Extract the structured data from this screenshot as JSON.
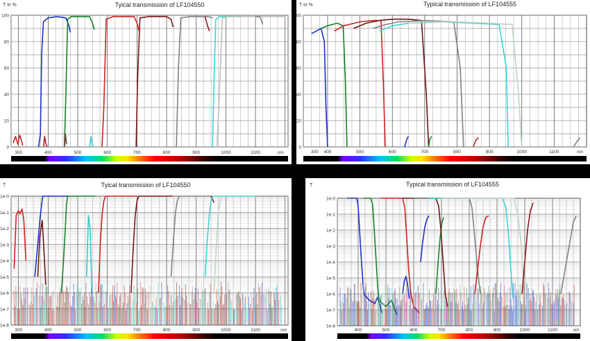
{
  "chart_data": [
    {
      "type": "line",
      "title": "Tyical transmission  of LF104550",
      "ylabel": "T in %",
      "xlabel": "nm",
      "y_scale": "linear",
      "xlim": [
        275,
        1210
      ],
      "ylim": [
        0,
        100
      ],
      "x_ticks": [
        "300",
        "400",
        "500",
        "600",
        "700",
        "800",
        "900",
        "1000",
        "1100",
        "nm"
      ],
      "y_ticks": [
        "0",
        "20",
        "40",
        "60",
        "80",
        "100"
      ],
      "grid": true,
      "spectrum_bar": true,
      "series": [
        {
          "color": "#d42020",
          "x": [
            282,
            290,
            298,
            304,
            310,
            314
          ],
          "y": [
            3,
            8,
            2,
            9,
            5,
            1
          ]
        },
        {
          "color": "#1a2fc8",
          "x": [
            368,
            374,
            378,
            384,
            400,
            430,
            460,
            470,
            475
          ],
          "y": [
            0,
            10,
            70,
            95,
            98,
            99,
            98,
            92,
            87
          ]
        },
        {
          "color": "#b02020",
          "x": [
            385,
            388,
            392,
            396
          ],
          "y": [
            0,
            8,
            3,
            0
          ]
        },
        {
          "color": "#17802a",
          "x": [
            455,
            460,
            466,
            478,
            540,
            548,
            556
          ],
          "y": [
            0,
            40,
            97,
            99,
            99,
            95,
            89
          ]
        },
        {
          "color": "#6b3c2c",
          "x": [
            455,
            458,
            462
          ],
          "y": [
            0,
            10,
            2
          ]
        },
        {
          "color": "#35c7c7",
          "x": [
            540,
            545,
            550
          ],
          "y": [
            0,
            8,
            0
          ]
        },
        {
          "color": "#cc2020",
          "x": [
            582,
            588,
            596,
            620,
            690,
            700,
            707
          ],
          "y": [
            0,
            30,
            97,
            99,
            99,
            94,
            88
          ]
        },
        {
          "color": "#7a1515",
          "x": [
            697,
            702,
            710,
            740,
            800,
            815,
            822
          ],
          "y": [
            0,
            50,
            98,
            99,
            99,
            97,
            91
          ]
        },
        {
          "color": "#808080",
          "x": [
            833,
            840,
            848,
            880,
            940,
            955
          ],
          "y": [
            0,
            60,
            98,
            99,
            99,
            98
          ]
        },
        {
          "color": "#8a1a1a",
          "x": [
            930,
            938,
            945
          ],
          "y": [
            99,
            92,
            88
          ]
        },
        {
          "color": "#3fd2d2",
          "x": [
            955,
            960,
            966,
            980,
            1000,
            1050
          ],
          "y": [
            0,
            50,
            97,
            99,
            99,
            99
          ]
        },
        {
          "color": "#b4c4b4",
          "x": [
            970,
            978,
            988,
            1010,
            1100,
            1135,
            1200
          ],
          "y": [
            0,
            40,
            98,
            99,
            99,
            99,
            99
          ]
        },
        {
          "color": "#808080",
          "x": [
            1100,
            1115,
            1125
          ],
          "y": [
            99,
            99,
            93
          ]
        }
      ]
    },
    {
      "type": "line",
      "title": "Typical transmission of LF104555",
      "ylabel": "T in %",
      "xlabel": "nm",
      "y_scale": "linear",
      "xlim": [
        325,
        1200
      ],
      "ylim": [
        0,
        100
      ],
      "x_ticks": [
        "300",
        "400",
        "500",
        "600",
        "700",
        "800",
        "900",
        "1000",
        "1100",
        "nm"
      ],
      "y_ticks": [
        "0",
        "20",
        "40",
        "60",
        "80",
        "100"
      ],
      "grid": true,
      "spectrum_bar": true,
      "series": [
        {
          "color": "#1a2fc8",
          "x": [
            350,
            365,
            380,
            390,
            395,
            400
          ],
          "y": [
            86,
            88,
            90,
            80,
            30,
            0
          ]
        },
        {
          "color": "#17802a",
          "x": [
            380,
            400,
            430,
            448,
            455,
            460
          ],
          "y": [
            90,
            92,
            94,
            92,
            50,
            0
          ]
        },
        {
          "color": "#cc2020",
          "x": [
            420,
            450,
            500,
            540,
            565,
            572,
            578
          ],
          "y": [
            88,
            92,
            95,
            96,
            96,
            50,
            0
          ]
        },
        {
          "color": "#6b1515",
          "x": [
            480,
            520,
            560,
            600,
            650,
            690,
            705,
            712
          ],
          "y": [
            90,
            94,
            96,
            97,
            97,
            96,
            40,
            0
          ]
        },
        {
          "color": "#808080",
          "x": [
            540,
            580,
            620,
            700,
            790,
            810,
            820
          ],
          "y": [
            90,
            93,
            95,
            96,
            95,
            60,
            0
          ]
        },
        {
          "color": "#3fd2d2",
          "x": [
            560,
            600,
            650,
            750,
            850,
            930,
            952,
            958
          ],
          "y": [
            88,
            92,
            94,
            95,
            94,
            93,
            60,
            0
          ]
        },
        {
          "color": "#c0d4c0",
          "x": [
            650,
            700,
            800,
            900,
            970,
            990,
            1000
          ],
          "y": [
            94,
            95,
            95,
            94,
            93,
            40,
            0
          ]
        },
        {
          "color": "#1a2fc8",
          "x": [
            638,
            645,
            650
          ],
          "y": [
            0,
            6,
            8
          ]
        },
        {
          "color": "#17802a",
          "x": [
            712,
            716,
            722
          ],
          "y": [
            0,
            6,
            8
          ]
        },
        {
          "color": "#cc2020",
          "x": [
            850,
            858,
            866
          ],
          "y": [
            0,
            5,
            7
          ]
        },
        {
          "color": "#808080",
          "x": [
            1160,
            1170,
            1180
          ],
          "y": [
            0,
            4,
            7
          ]
        }
      ]
    },
    {
      "type": "line",
      "title": "Tyical transmission  of LF104550",
      "ylabel": "T",
      "xlabel": "nm",
      "y_scale": "log",
      "xlim": [
        275,
        1210
      ],
      "ylim": [
        -8,
        0
      ],
      "x_ticks": [
        "300",
        "400",
        "500",
        "600",
        "700",
        "800",
        "900",
        "1000",
        "1100",
        "nm"
      ],
      "y_ticks": [
        "1e-8",
        "1e-7",
        "1e-6",
        "1e-5",
        "1e-4",
        "1e-3",
        "1e-2",
        "1e-1",
        "1e-0"
      ],
      "grid": true,
      "spectrum_bar": true,
      "series": [
        {
          "color": "#d42020",
          "x": [
            285,
            292,
            300,
            305,
            312,
            318,
            325
          ],
          "y": [
            -4.5,
            -1.2,
            -0.9,
            -1.1,
            -0.8,
            -1.5,
            -4
          ]
        },
        {
          "color": "#1a2fc8",
          "x": [
            355,
            365,
            372,
            378,
            382,
            420,
            470
          ],
          "y": [
            -5,
            -3,
            -1.5,
            -0.5,
            0,
            0,
            0
          ]
        },
        {
          "color": "#17802a",
          "x": [
            445,
            452,
            458,
            462,
            466,
            520,
            560
          ],
          "y": [
            -6,
            -4,
            -2,
            -0.5,
            0,
            0,
            0
          ]
        },
        {
          "color": "#6b1515",
          "x": [
            365,
            372,
            380,
            385,
            392
          ],
          "y": [
            -5,
            -2.5,
            -1.5,
            -3,
            -5.5
          ]
        },
        {
          "color": "#35c7c7",
          "x": [
            530,
            536,
            542,
            548
          ],
          "y": [
            -5,
            -1.2,
            -2,
            -6
          ]
        },
        {
          "color": "#cc2020",
          "x": [
            570,
            576,
            582,
            588,
            594,
            650,
            700
          ],
          "y": [
            -6,
            -3,
            -1.2,
            -0.3,
            0,
            0,
            0
          ]
        },
        {
          "color": "#7a1515",
          "x": [
            680,
            688,
            694,
            700,
            706,
            760,
            820
          ],
          "y": [
            -6,
            -3,
            -1.2,
            -0.3,
            0,
            0,
            0
          ]
        },
        {
          "color": "#808080",
          "x": [
            815,
            822,
            830,
            836,
            842,
            900,
            950
          ],
          "y": [
            -5,
            -3,
            -1,
            -0.3,
            0,
            0,
            0
          ]
        },
        {
          "color": "#8a1a1a",
          "x": [
            950,
            955,
            960
          ],
          "y": [
            0,
            -0.2,
            -0.4
          ]
        },
        {
          "color": "#3fd2d2",
          "x": [
            930,
            936,
            944,
            950,
            956,
            1000,
            1100
          ],
          "y": [
            -5,
            -3,
            -1.2,
            -0.3,
            0,
            0,
            0
          ]
        },
        {
          "color": "#c0d4c0",
          "x": [
            960,
            968,
            975,
            982,
            990
          ],
          "y": [
            -6,
            -3,
            -1,
            -0.2,
            0
          ]
        }
      ]
    },
    {
      "type": "line",
      "title": "Typical transmission of LF104555",
      "ylabel": "T",
      "xlabel": "nm",
      "y_scale": "log",
      "xlim": [
        325,
        1200
      ],
      "ylim": [
        -8,
        0
      ],
      "x_ticks": [
        "400",
        "500",
        "600",
        "700",
        "800",
        "900",
        "1000",
        "1100",
        "nm"
      ],
      "y_ticks": [
        "1e-8",
        "1e-7",
        "1e-6",
        "1e-5",
        "1e-4",
        "1e-3",
        "1e-2",
        "1e-1",
        "1e-0"
      ],
      "grid": true,
      "spectrum_bar": true,
      "series": [
        {
          "color": "#1a2fc8",
          "x": [
            360,
            380,
            395,
            400,
            405,
            412,
            420,
            440,
            460,
            470,
            480,
            485
          ],
          "y": [
            0,
            0,
            0,
            -0.5,
            -2,
            -4,
            -6,
            -6.4,
            -6.6,
            -6.2,
            -6.8,
            -7.2
          ]
        },
        {
          "color": "#17802a",
          "x": [
            420,
            445,
            452,
            458,
            465,
            472,
            480,
            500,
            520,
            530,
            540
          ],
          "y": [
            0,
            0,
            -0.4,
            -2,
            -4,
            -6,
            -6.5,
            -6.8,
            -6.4,
            -6.9,
            -7.3
          ]
        },
        {
          "color": "#1a2fc8",
          "x": [
            560,
            566,
            572,
            578,
            584
          ],
          "y": [
            -6,
            -5.2,
            -4.9,
            -5.4,
            -6.3
          ]
        },
        {
          "color": "#1a2fc8",
          "x": [
            625,
            632,
            640,
            648,
            655
          ],
          "y": [
            -4,
            -2.8,
            -1.8,
            -1.3,
            -1.1
          ]
        },
        {
          "color": "#cc2020",
          "x": [
            480,
            560,
            568,
            575,
            582,
            590,
            600,
            620
          ],
          "y": [
            0,
            0,
            -0.6,
            -2.5,
            -4.5,
            -6,
            -6.8,
            -7.2
          ]
        },
        {
          "color": "#17802a",
          "x": [
            680,
            688,
            695,
            702,
            708
          ],
          "y": [
            -6,
            -4,
            -2.5,
            -1.5,
            -1.2
          ]
        },
        {
          "color": "#6b1515",
          "x": [
            560,
            680,
            690,
            698,
            706,
            714,
            722
          ],
          "y": [
            0,
            0,
            -0.5,
            -2,
            -4,
            -6,
            -6.8
          ]
        },
        {
          "color": "#808080",
          "x": [
            600,
            800,
            810,
            820,
            830,
            840
          ],
          "y": [
            0,
            0,
            -0.6,
            -2.5,
            -4.5,
            -6
          ]
        },
        {
          "color": "#cc2020",
          "x": [
            820,
            830,
            840,
            850,
            860,
            870
          ],
          "y": [
            -6,
            -4.5,
            -3,
            -1.8,
            -1.2,
            -1.1
          ]
        },
        {
          "color": "#3fd2d2",
          "x": [
            650,
            920,
            932,
            942,
            950,
            958
          ],
          "y": [
            0,
            0,
            -0.6,
            -2.4,
            -4.5,
            -6.3
          ]
        },
        {
          "color": "#c0d4c0",
          "x": [
            700,
            960,
            975,
            988,
            998
          ],
          "y": [
            0,
            0,
            -1,
            -3,
            -6
          ]
        },
        {
          "color": "#8a1a1a",
          "x": [
            990,
            1000,
            1010,
            1020,
            1030
          ],
          "y": [
            -6,
            -4,
            -2,
            -0.8,
            -0.3
          ]
        },
        {
          "color": "#808080",
          "x": [
            1130,
            1145,
            1160,
            1175,
            1185
          ],
          "y": [
            -6,
            -4.5,
            -3,
            -1.5,
            -1.1
          ]
        }
      ]
    }
  ]
}
